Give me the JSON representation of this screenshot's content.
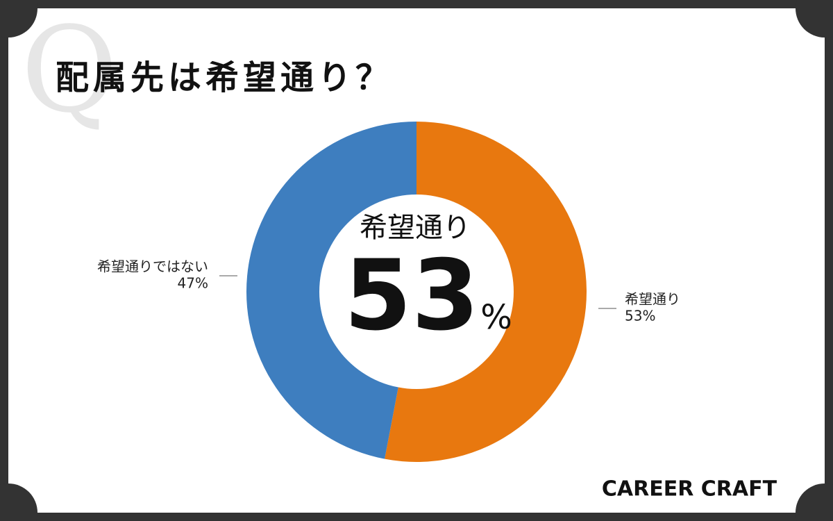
{
  "chart_data": {
    "type": "donut",
    "title": "配属先は希望通り？",
    "watermark": "Q",
    "categories": [
      "希望通り",
      "希望通りではない"
    ],
    "values": [
      53,
      47
    ],
    "value_labels": [
      "53%",
      "47%"
    ],
    "colors": [
      "#E8780F",
      "#3E7EBF"
    ],
    "center_label": "希望通り",
    "center_value": 53,
    "center_unit": "%",
    "brand": "CAREER CRAFT"
  }
}
